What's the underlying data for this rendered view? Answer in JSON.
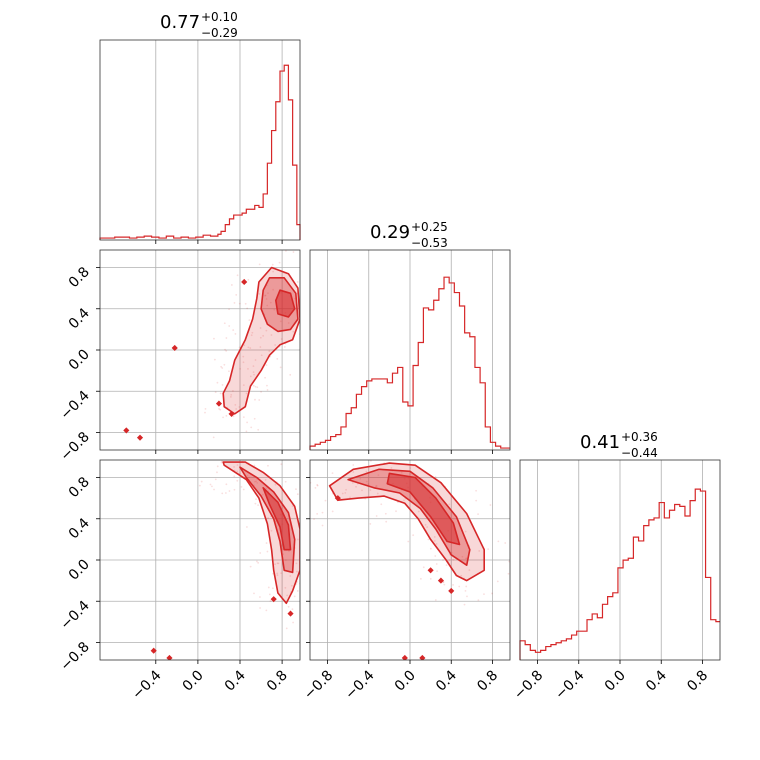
{
  "chart_data": {
    "type": "corner",
    "color": "#d62728",
    "grid": true,
    "params": 3,
    "diagonal": [
      {
        "title": {
          "median": "0.77",
          "plus": "+0.10",
          "minus": "−0.29"
        },
        "xlim": [
          -0.93,
          0.97
        ],
        "bins": [
          [
            -0.93,
            0.01
          ],
          [
            -0.86,
            0.01
          ],
          [
            -0.79,
            0.015
          ],
          [
            -0.72,
            0.015
          ],
          [
            -0.65,
            0.01
          ],
          [
            -0.58,
            0.015
          ],
          [
            -0.51,
            0.02
          ],
          [
            -0.44,
            0.015
          ],
          [
            -0.37,
            0.01
          ],
          [
            -0.3,
            0.02
          ],
          [
            -0.23,
            0.01
          ],
          [
            -0.16,
            0.015
          ],
          [
            -0.09,
            0.01
          ],
          [
            -0.02,
            0.015
          ],
          [
            0.05,
            0.025
          ],
          [
            0.12,
            0.02
          ],
          [
            0.19,
            0.03
          ],
          [
            0.22,
            0.045
          ],
          [
            0.26,
            0.08
          ],
          [
            0.3,
            0.11
          ],
          [
            0.34,
            0.13
          ],
          [
            0.38,
            0.13
          ],
          [
            0.42,
            0.14
          ],
          [
            0.46,
            0.16
          ],
          [
            0.5,
            0.16
          ],
          [
            0.54,
            0.18
          ],
          [
            0.58,
            0.17
          ],
          [
            0.62,
            0.24
          ],
          [
            0.66,
            0.4
          ],
          [
            0.7,
            0.57
          ],
          [
            0.74,
            0.72
          ],
          [
            0.78,
            0.88
          ],
          [
            0.82,
            0.91
          ],
          [
            0.86,
            0.73
          ],
          [
            0.9,
            0.39
          ],
          [
            0.94,
            0.08
          ],
          [
            0.97,
            0.0
          ]
        ],
        "ymax": 1.0
      },
      {
        "title": {
          "median": "0.29",
          "plus": "+0.25",
          "minus": "−0.53"
        },
        "xlim": [
          -0.97,
          0.97
        ],
        "bins": [
          [
            -0.97,
            0.02
          ],
          [
            -0.92,
            0.03
          ],
          [
            -0.87,
            0.04
          ],
          [
            -0.82,
            0.05
          ],
          [
            -0.77,
            0.07
          ],
          [
            -0.72,
            0.08
          ],
          [
            -0.67,
            0.12
          ],
          [
            -0.62,
            0.19
          ],
          [
            -0.57,
            0.22
          ],
          [
            -0.52,
            0.29
          ],
          [
            -0.47,
            0.33
          ],
          [
            -0.42,
            0.36
          ],
          [
            -0.37,
            0.37
          ],
          [
            -0.32,
            0.37
          ],
          [
            -0.27,
            0.37
          ],
          [
            -0.22,
            0.35
          ],
          [
            -0.17,
            0.4
          ],
          [
            -0.12,
            0.43
          ],
          [
            -0.07,
            0.25
          ],
          [
            -0.02,
            0.23
          ],
          [
            0.03,
            0.44
          ],
          [
            0.08,
            0.56
          ],
          [
            0.13,
            0.74
          ],
          [
            0.18,
            0.73
          ],
          [
            0.23,
            0.78
          ],
          [
            0.28,
            0.84
          ],
          [
            0.33,
            0.9
          ],
          [
            0.38,
            0.87
          ],
          [
            0.43,
            0.82
          ],
          [
            0.48,
            0.75
          ],
          [
            0.53,
            0.61
          ],
          [
            0.58,
            0.59
          ],
          [
            0.63,
            0.43
          ],
          [
            0.68,
            0.35
          ],
          [
            0.73,
            0.12
          ],
          [
            0.78,
            0.04
          ],
          [
            0.83,
            0.02
          ],
          [
            0.88,
            0.01
          ]
        ],
        "ymax": 1.0
      },
      {
        "title": {
          "median": "0.41",
          "plus": "+0.36",
          "minus": "−0.44"
        },
        "xlim": [
          -0.97,
          0.97
        ],
        "bins": [
          [
            -0.97,
            0.1
          ],
          [
            -0.92,
            0.08
          ],
          [
            -0.87,
            0.05
          ],
          [
            -0.82,
            0.04
          ],
          [
            -0.77,
            0.05
          ],
          [
            -0.72,
            0.07
          ],
          [
            -0.67,
            0.08
          ],
          [
            -0.62,
            0.09
          ],
          [
            -0.57,
            0.1
          ],
          [
            -0.52,
            0.11
          ],
          [
            -0.47,
            0.13
          ],
          [
            -0.42,
            0.15
          ],
          [
            -0.37,
            0.15
          ],
          [
            -0.32,
            0.21
          ],
          [
            -0.27,
            0.24
          ],
          [
            -0.22,
            0.22
          ],
          [
            -0.17,
            0.29
          ],
          [
            -0.12,
            0.33
          ],
          [
            -0.07,
            0.35
          ],
          [
            -0.02,
            0.48
          ],
          [
            0.03,
            0.52
          ],
          [
            0.08,
            0.53
          ],
          [
            0.13,
            0.64
          ],
          [
            0.18,
            0.62
          ],
          [
            0.23,
            0.7
          ],
          [
            0.28,
            0.73
          ],
          [
            0.33,
            0.74
          ],
          [
            0.38,
            0.82
          ],
          [
            0.43,
            0.74
          ],
          [
            0.48,
            0.78
          ],
          [
            0.53,
            0.81
          ],
          [
            0.58,
            0.8
          ],
          [
            0.63,
            0.75
          ],
          [
            0.68,
            0.83
          ],
          [
            0.73,
            0.89
          ],
          [
            0.78,
            0.88
          ],
          [
            0.83,
            0.43
          ],
          [
            0.88,
            0.21
          ],
          [
            0.93,
            0.2
          ]
        ],
        "ymax": 1.0
      }
    ],
    "offdiagonal": [
      {
        "row": 1,
        "col": 0,
        "xlim": [
          -0.93,
          0.97
        ],
        "ylim": [
          -0.97,
          0.97
        ],
        "levels": [
          [
            [
              0.58,
              0.66
            ],
            [
              0.7,
              0.8
            ],
            [
              0.86,
              0.74
            ],
            [
              0.95,
              0.6
            ],
            [
              0.97,
              0.3
            ],
            [
              0.9,
              0.1
            ],
            [
              0.78,
              0.05
            ],
            [
              0.68,
              -0.05
            ],
            [
              0.6,
              -0.2
            ],
            [
              0.5,
              -0.35
            ],
            [
              0.45,
              -0.55
            ],
            [
              0.35,
              -0.62
            ],
            [
              0.25,
              -0.55
            ],
            [
              0.24,
              -0.42
            ],
            [
              0.3,
              -0.3
            ],
            [
              0.35,
              -0.1
            ],
            [
              0.45,
              0.1
            ],
            [
              0.52,
              0.3
            ],
            [
              0.56,
              0.5
            ]
          ],
          [
            [
              0.68,
              0.7
            ],
            [
              0.82,
              0.7
            ],
            [
              0.93,
              0.55
            ],
            [
              0.95,
              0.3
            ],
            [
              0.88,
              0.2
            ],
            [
              0.76,
              0.18
            ],
            [
              0.66,
              0.25
            ],
            [
              0.6,
              0.4
            ],
            [
              0.62,
              0.58
            ]
          ],
          [
            [
              0.78,
              0.58
            ],
            [
              0.88,
              0.55
            ],
            [
              0.92,
              0.4
            ],
            [
              0.86,
              0.32
            ],
            [
              0.76,
              0.35
            ],
            [
              0.74,
              0.48
            ]
          ]
        ],
        "points": [
          [
            -0.68,
            -0.78
          ],
          [
            -0.55,
            -0.85
          ],
          [
            -0.22,
            0.02
          ],
          [
            0.44,
            0.66
          ],
          [
            0.2,
            -0.52
          ],
          [
            0.32,
            -0.62
          ]
        ]
      },
      {
        "row": 2,
        "col": 0,
        "xlim": [
          -0.93,
          0.97
        ],
        "ylim": [
          -0.97,
          0.97
        ],
        "levels": [
          [
            [
              0.24,
              0.95
            ],
            [
              0.45,
              0.95
            ],
            [
              0.62,
              0.85
            ],
            [
              0.78,
              0.72
            ],
            [
              0.92,
              0.52
            ],
            [
              0.97,
              0.3
            ],
            [
              0.97,
              -0.1
            ],
            [
              0.9,
              -0.3
            ],
            [
              0.84,
              -0.42
            ],
            [
              0.76,
              -0.32
            ],
            [
              0.72,
              -0.1
            ],
            [
              0.7,
              0.1
            ],
            [
              0.66,
              0.35
            ],
            [
              0.58,
              0.6
            ],
            [
              0.46,
              0.78
            ],
            [
              0.34,
              0.86
            ],
            [
              0.25,
              0.92
            ]
          ],
          [
            [
              0.4,
              0.9
            ],
            [
              0.56,
              0.8
            ],
            [
              0.72,
              0.66
            ],
            [
              0.86,
              0.46
            ],
            [
              0.92,
              0.2
            ],
            [
              0.9,
              -0.12
            ],
            [
              0.82,
              -0.1
            ],
            [
              0.78,
              0.18
            ],
            [
              0.72,
              0.4
            ],
            [
              0.6,
              0.62
            ],
            [
              0.46,
              0.8
            ]
          ],
          [
            [
              0.62,
              0.7
            ],
            [
              0.76,
              0.56
            ],
            [
              0.86,
              0.34
            ],
            [
              0.88,
              0.1
            ],
            [
              0.82,
              0.1
            ],
            [
              0.78,
              0.32
            ],
            [
              0.68,
              0.54
            ]
          ]
        ],
        "points": [
          [
            -0.42,
            -0.88
          ],
          [
            -0.27,
            -0.95
          ],
          [
            0.72,
            -0.38
          ],
          [
            0.88,
            -0.52
          ]
        ]
      },
      {
        "row": 2,
        "col": 1,
        "xlim": [
          -0.97,
          0.97
        ],
        "ylim": [
          -0.97,
          0.97
        ],
        "levels": [
          [
            [
              -0.78,
              0.72
            ],
            [
              -0.55,
              0.88
            ],
            [
              -0.2,
              0.94
            ],
            [
              0.05,
              0.92
            ],
            [
              0.3,
              0.75
            ],
            [
              0.55,
              0.45
            ],
            [
              0.72,
              0.1
            ],
            [
              0.72,
              -0.1
            ],
            [
              0.55,
              -0.2
            ],
            [
              0.45,
              -0.15
            ],
            [
              0.35,
              0.0
            ],
            [
              0.2,
              0.2
            ],
            [
              0.08,
              0.4
            ],
            [
              -0.05,
              0.55
            ],
            [
              -0.25,
              0.62
            ],
            [
              -0.5,
              0.6
            ],
            [
              -0.7,
              0.58
            ]
          ],
          [
            [
              -0.6,
              0.78
            ],
            [
              -0.3,
              0.88
            ],
            [
              0.0,
              0.86
            ],
            [
              0.22,
              0.7
            ],
            [
              0.45,
              0.42
            ],
            [
              0.58,
              0.1
            ],
            [
              0.55,
              -0.05
            ],
            [
              0.4,
              0.05
            ],
            [
              0.25,
              0.3
            ],
            [
              0.1,
              0.5
            ],
            [
              -0.1,
              0.65
            ],
            [
              -0.35,
              0.7
            ]
          ],
          [
            [
              -0.2,
              0.84
            ],
            [
              0.05,
              0.8
            ],
            [
              0.25,
              0.6
            ],
            [
              0.42,
              0.36
            ],
            [
              0.48,
              0.15
            ],
            [
              0.36,
              0.18
            ],
            [
              0.2,
              0.42
            ],
            [
              0.0,
              0.66
            ],
            [
              -0.22,
              0.74
            ]
          ]
        ],
        "points": [
          [
            0.2,
            -0.1
          ],
          [
            0.3,
            -0.2
          ],
          [
            0.4,
            -0.3
          ],
          [
            -0.05,
            -0.95
          ],
          [
            0.12,
            -0.95
          ],
          [
            -0.7,
            0.6
          ]
        ]
      }
    ],
    "ticks": {
      "col0_x": [
        "−0.4",
        "0.0",
        "0.4",
        "0.8"
      ],
      "col0_x_vals": [
        -0.4,
        0.0,
        0.4,
        0.8
      ],
      "col1_x": [
        "−0.8",
        "−0.4",
        "0.0",
        "0.4",
        "0.8"
      ],
      "col1_x_vals": [
        -0.8,
        -0.4,
        0.0,
        0.4,
        0.8
      ],
      "col2_x": [
        "−0.8",
        "−0.4",
        "0.0",
        "0.4",
        "0.8"
      ],
      "col2_x_vals": [
        -0.8,
        -0.4,
        0.0,
        0.4,
        0.8
      ],
      "row_y": [
        "−0.8",
        "−0.4",
        "0.0",
        "0.4",
        "0.8"
      ],
      "row_y_vals": [
        -0.8,
        -0.4,
        0.0,
        0.4,
        0.8
      ]
    }
  }
}
